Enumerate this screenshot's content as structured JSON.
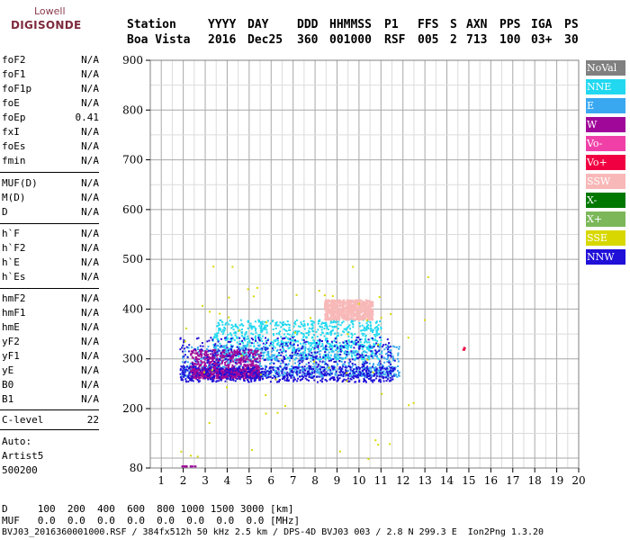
{
  "logo": {
    "line1": "Lowell",
    "line2": "DIGISONDE"
  },
  "header": {
    "labels": [
      "Station",
      "YYYY",
      "DAY",
      "DDD",
      "HHMMSS",
      "P1",
      "FFS",
      "S",
      "AXN",
      "PPS",
      "IGA",
      "PS"
    ],
    "values": [
      "Boa Vista",
      "2016",
      "Dec25",
      "360",
      "001000",
      "RSF",
      "005",
      "2",
      "713",
      "100",
      "03+",
      "30"
    ]
  },
  "params_group1": [
    {
      "name": "foF2",
      "value": "N/A"
    },
    {
      "name": "foF1",
      "value": "N/A"
    },
    {
      "name": "foF1p",
      "value": "N/A"
    },
    {
      "name": "foE",
      "value": "N/A"
    },
    {
      "name": "foEp",
      "value": "0.41"
    },
    {
      "name": "fxI",
      "value": "N/A"
    },
    {
      "name": "foEs",
      "value": "N/A"
    },
    {
      "name": "fmin",
      "value": "N/A"
    }
  ],
  "params_group2": [
    {
      "name": "MUF(D)",
      "value": "N/A"
    },
    {
      "name": "M(D)",
      "value": "N/A"
    },
    {
      "name": "D",
      "value": "N/A"
    }
  ],
  "params_group3": [
    {
      "name": "h`F",
      "value": "N/A"
    },
    {
      "name": "h`F2",
      "value": "N/A"
    },
    {
      "name": "h`E",
      "value": "N/A"
    },
    {
      "name": "h`Es",
      "value": "N/A"
    }
  ],
  "params_group4": [
    {
      "name": "hmF2",
      "value": "N/A"
    },
    {
      "name": "hmF1",
      "value": "N/A"
    },
    {
      "name": "hmE",
      "value": "N/A"
    },
    {
      "name": "yF2",
      "value": "N/A"
    },
    {
      "name": "yF1",
      "value": "N/A"
    },
    {
      "name": "yE",
      "value": "N/A"
    },
    {
      "name": "B0",
      "value": "N/A"
    },
    {
      "name": "B1",
      "value": "N/A"
    }
  ],
  "params_group5": [
    {
      "name": "C-level",
      "value": "22"
    }
  ],
  "autoscale": {
    "line1": "Auto:",
    "line2": "Artist5",
    "line3": "500200"
  },
  "bottom": {
    "d_row": "D     100  200  400  600  800 1000 1500 3000 [km]",
    "muf_row": "MUF   0.0  0.0  0.0  0.0  0.0  0.0  0.0  0.0 [MHz]",
    "footer": "BVJ03_2016360001000.RSF / 384fx512h 50 kHz 2.5 km / DPS-4D BVJ03 003 / 2.8 N 299.3 E  Ion2Png 1.3.20"
  },
  "legend": [
    {
      "label": "NoVal",
      "color": "#808080"
    },
    {
      "label": "NNE",
      "color": "#22d8f0"
    },
    {
      "label": "E",
      "color": "#3aa8f0"
    },
    {
      "label": "W",
      "color": "#a0089a"
    },
    {
      "label": "Vo-",
      "color": "#f040a8"
    },
    {
      "label": "Vo+",
      "color": "#f00040"
    },
    {
      "label": "SSW",
      "color": "#f8b8b8"
    },
    {
      "label": "X-",
      "color": "#007800"
    },
    {
      "label": "X+",
      "color": "#7cb85a"
    },
    {
      "label": "SSE",
      "color": "#d8d800"
    },
    {
      "label": "NNW",
      "color": "#2010d8"
    }
  ],
  "chart_data": {
    "type": "scatter",
    "x_ticks": [
      "1",
      "2",
      "3",
      "4",
      "5",
      "6",
      "7",
      "8",
      "9",
      "10",
      "11",
      "12",
      "13",
      "14",
      "15",
      "16",
      "17",
      "18",
      "19",
      "20"
    ],
    "y_ticks": [
      "900",
      "800",
      "700",
      "600",
      "500",
      "400",
      "300",
      "200",
      "80"
    ],
    "xlim": [
      0.5,
      20
    ],
    "ylim": [
      80,
      900
    ],
    "grid": true,
    "series": [
      {
        "name": "NNE",
        "color": "#22d8f0",
        "x_range": [
          3.3,
          11.0
        ],
        "y_range": [
          300,
          380
        ]
      },
      {
        "name": "E",
        "color": "#3aa8f0",
        "x_range": [
          1.9,
          11.8
        ],
        "y_range": [
          265,
          330
        ]
      },
      {
        "name": "W",
        "color": "#a0089a",
        "x_range": [
          2.3,
          5.5
        ],
        "y_range": [
          262,
          320
        ]
      },
      {
        "name": "NNW",
        "color": "#2010d8",
        "x_range": [
          1.8,
          11.6
        ],
        "y_range": [
          255,
          345
        ]
      },
      {
        "name": "SSW",
        "color": "#f8b8b8",
        "x_range": [
          8.4,
          10.6
        ],
        "y_range": [
          380,
          420
        ]
      },
      {
        "name": "SSE",
        "color": "#d8d800",
        "x_range": [
          1.7,
          13.2
        ],
        "y_range": [
          100,
          490
        ]
      },
      {
        "name": "Vo+",
        "color": "#f00040",
        "x_range": [
          14.7,
          14.8
        ],
        "y_range": [
          320,
          325
        ]
      }
    ]
  }
}
